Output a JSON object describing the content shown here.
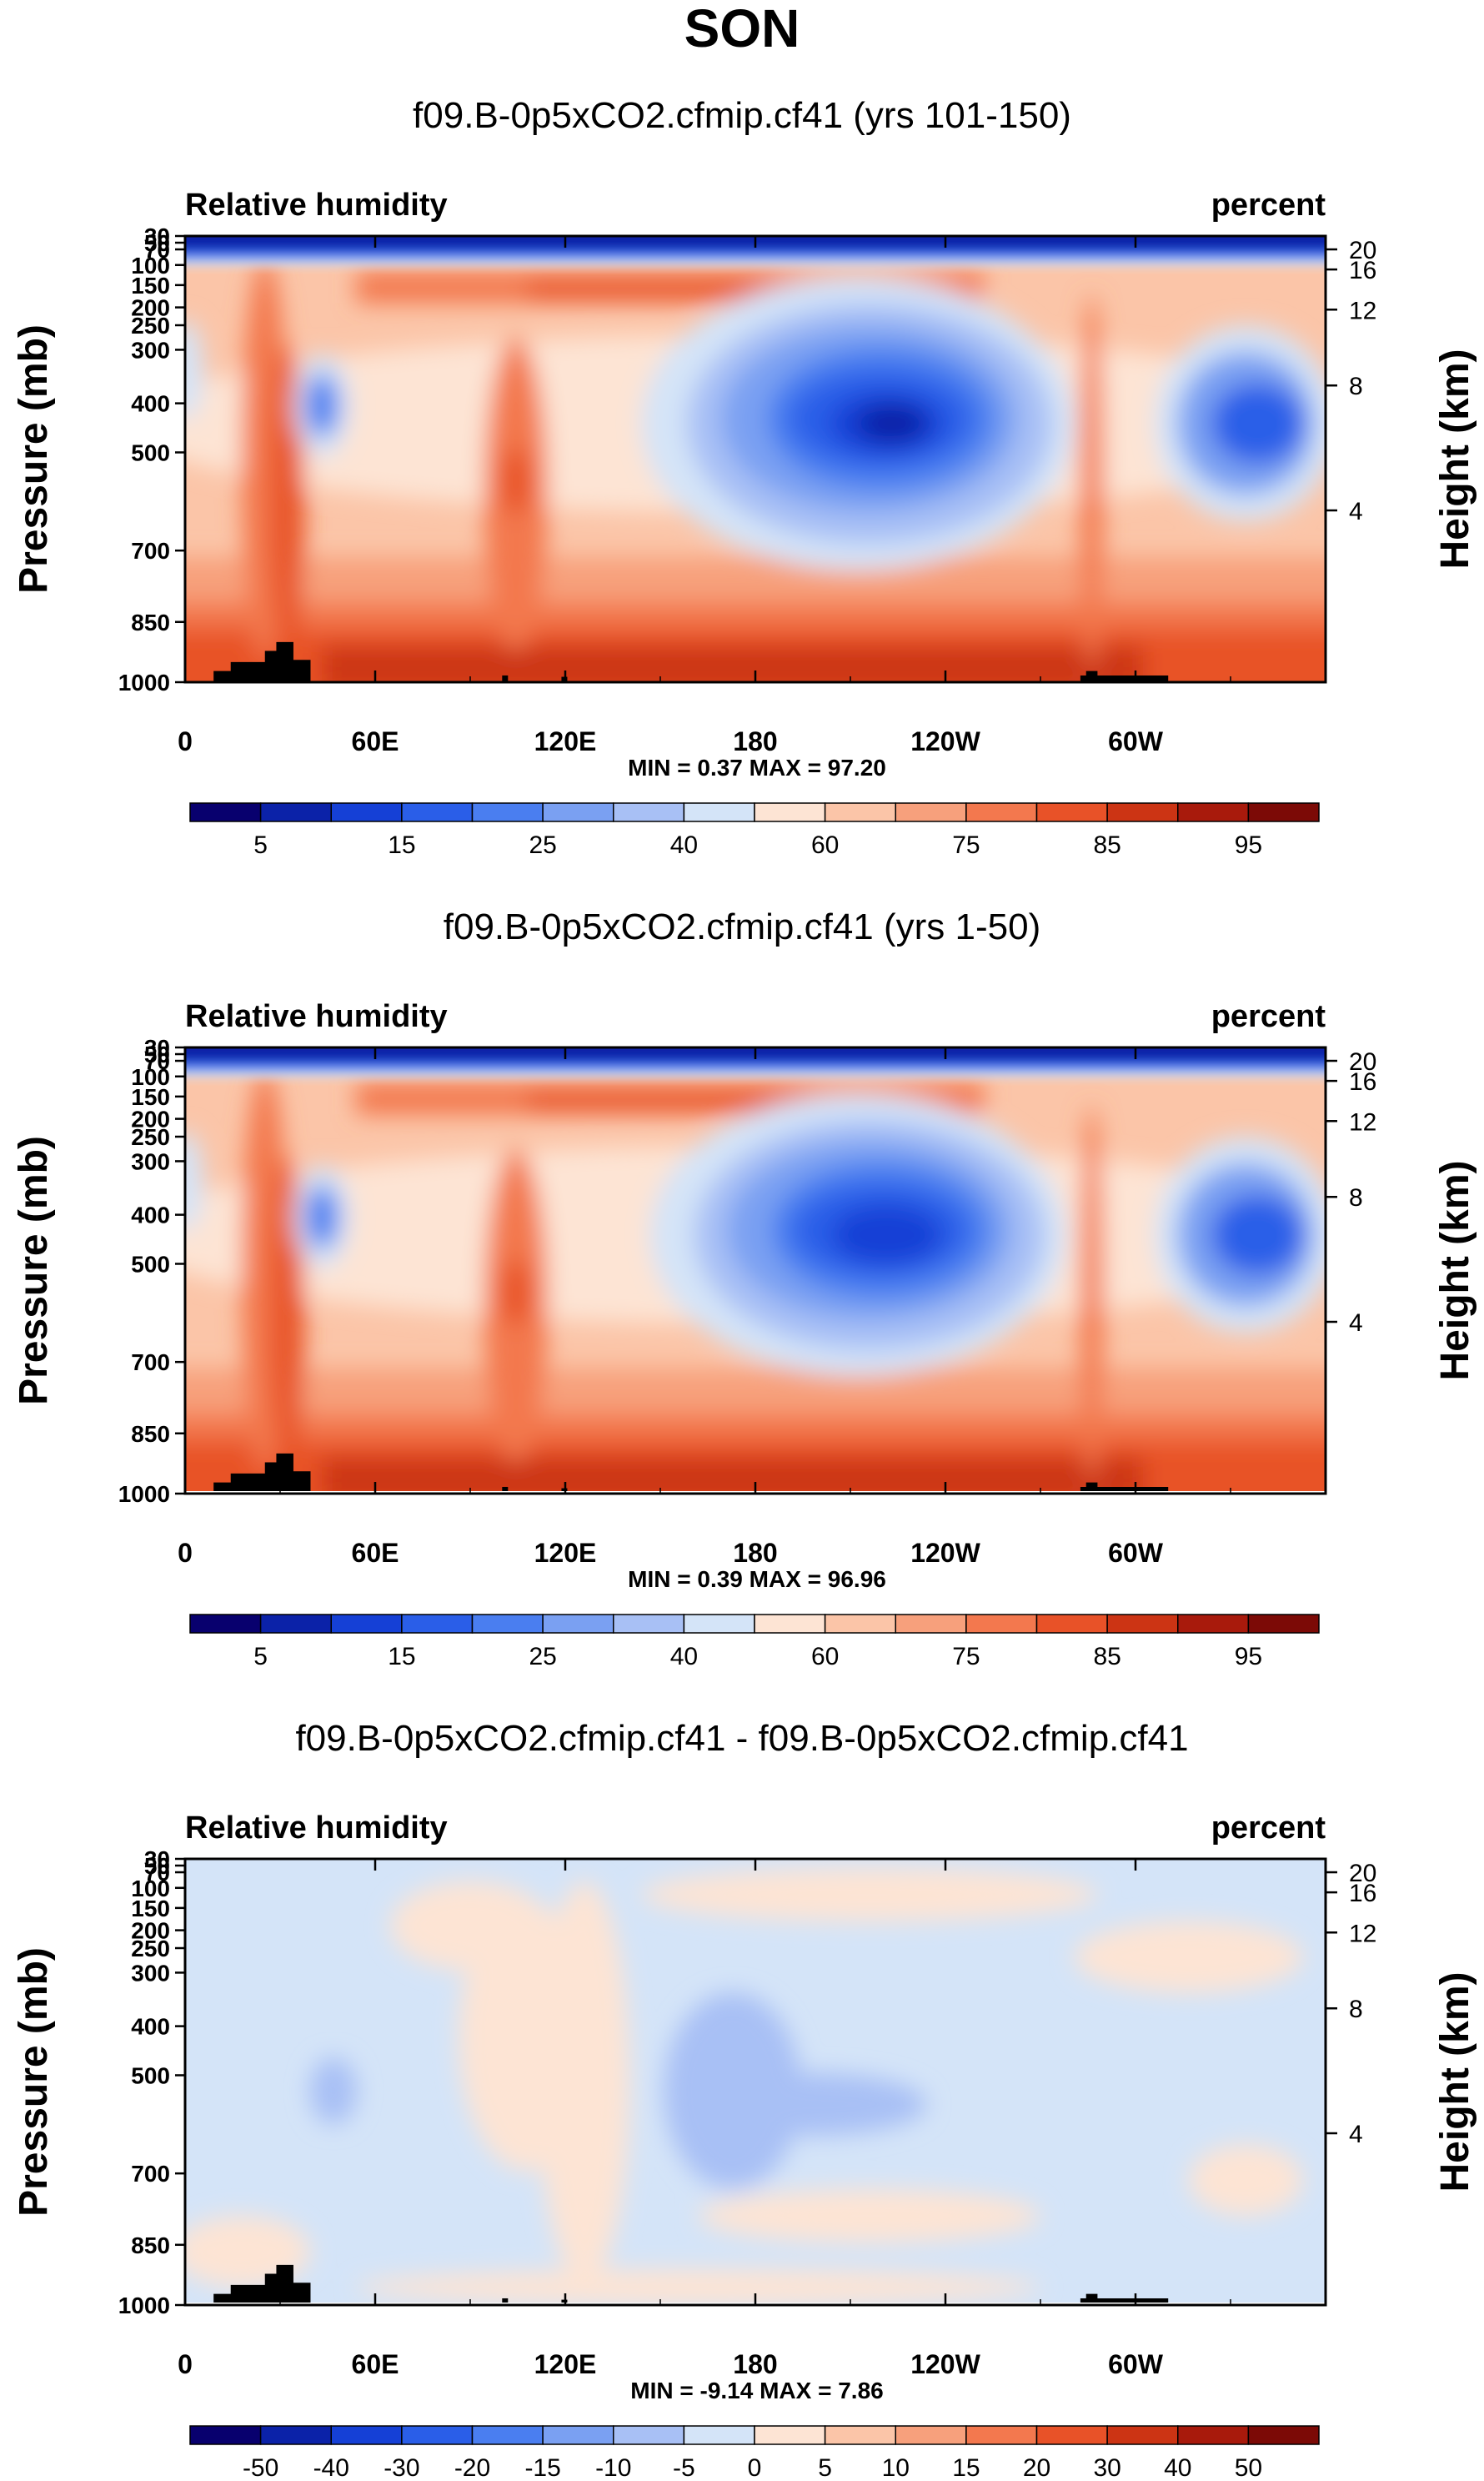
{
  "chart_data": {
    "type": "heatmap",
    "title": "SON",
    "x_ticks": [
      "0",
      "60E",
      "120E",
      "180",
      "120W",
      "60W"
    ],
    "p_ticks": [
      "30",
      "50",
      "70",
      "100",
      "150",
      "200",
      "250",
      "300",
      "400",
      "500",
      "700",
      "850",
      "1000"
    ],
    "h_ticks": [
      "20",
      "16",
      "12",
      "8",
      "4"
    ],
    "ylabel": "Pressure (mb)",
    "ylabel_right": "Height (km)",
    "panels": [
      {
        "subtitle": "f09.B-0p5xCO2.cfmip.cf41 (yrs 101-150)",
        "left_label": "Relative humidity",
        "right_label": "percent",
        "stats": "MIN =   0.37   MAX =  97.20",
        "kind": "abs",
        "colorbar_labels": [
          "5",
          "15",
          "25",
          "40",
          "60",
          "75",
          "85",
          "95"
        ]
      },
      {
        "subtitle": "f09.B-0p5xCO2.cfmip.cf41 (yrs 1-50)",
        "left_label": "Relative humidity",
        "right_label": "percent",
        "stats": "MIN =   0.39   MAX =  96.96",
        "kind": "abs",
        "colorbar_labels": [
          "5",
          "15",
          "25",
          "40",
          "60",
          "75",
          "85",
          "95"
        ]
      },
      {
        "subtitle": "f09.B-0p5xCO2.cfmip.cf41 - f09.B-0p5xCO2.cfmip.cf41",
        "left_label": "Relative humidity",
        "right_label": "percent",
        "stats": "MIN =  -9.14   MAX =   7.86",
        "kind": "diff",
        "colorbar_labels": [
          "-50",
          "-40",
          "-30",
          "-20",
          "-15",
          "-10",
          "-5",
          "0",
          "5",
          "10",
          "15",
          "20",
          "30",
          "40",
          "50"
        ]
      }
    ],
    "colors": {
      "abs": [
        "#08006e",
        "#0b22a8",
        "#1540d6",
        "#2a5ee8",
        "#4a7ef0",
        "#7aa0f2",
        "#a8c0f5",
        "#d4e4f8",
        "#fde4d4",
        "#fbc5a8",
        "#f7a07c",
        "#f3784e",
        "#e85228",
        "#cc3414",
        "#a81a0c",
        "#7c0a06"
      ],
      "diff": [
        "#08006e",
        "#0b22a8",
        "#1540d6",
        "#2a5ee8",
        "#4a7ef0",
        "#7aa0f2",
        "#a8c0f5",
        "#d4e4f8",
        "#fde4d4",
        "#fbc5a8",
        "#f7a07c",
        "#f3784e",
        "#e85228",
        "#cc3414",
        "#a81a0c",
        "#7c0a06"
      ],
      "terrain": "#000000"
    }
  }
}
